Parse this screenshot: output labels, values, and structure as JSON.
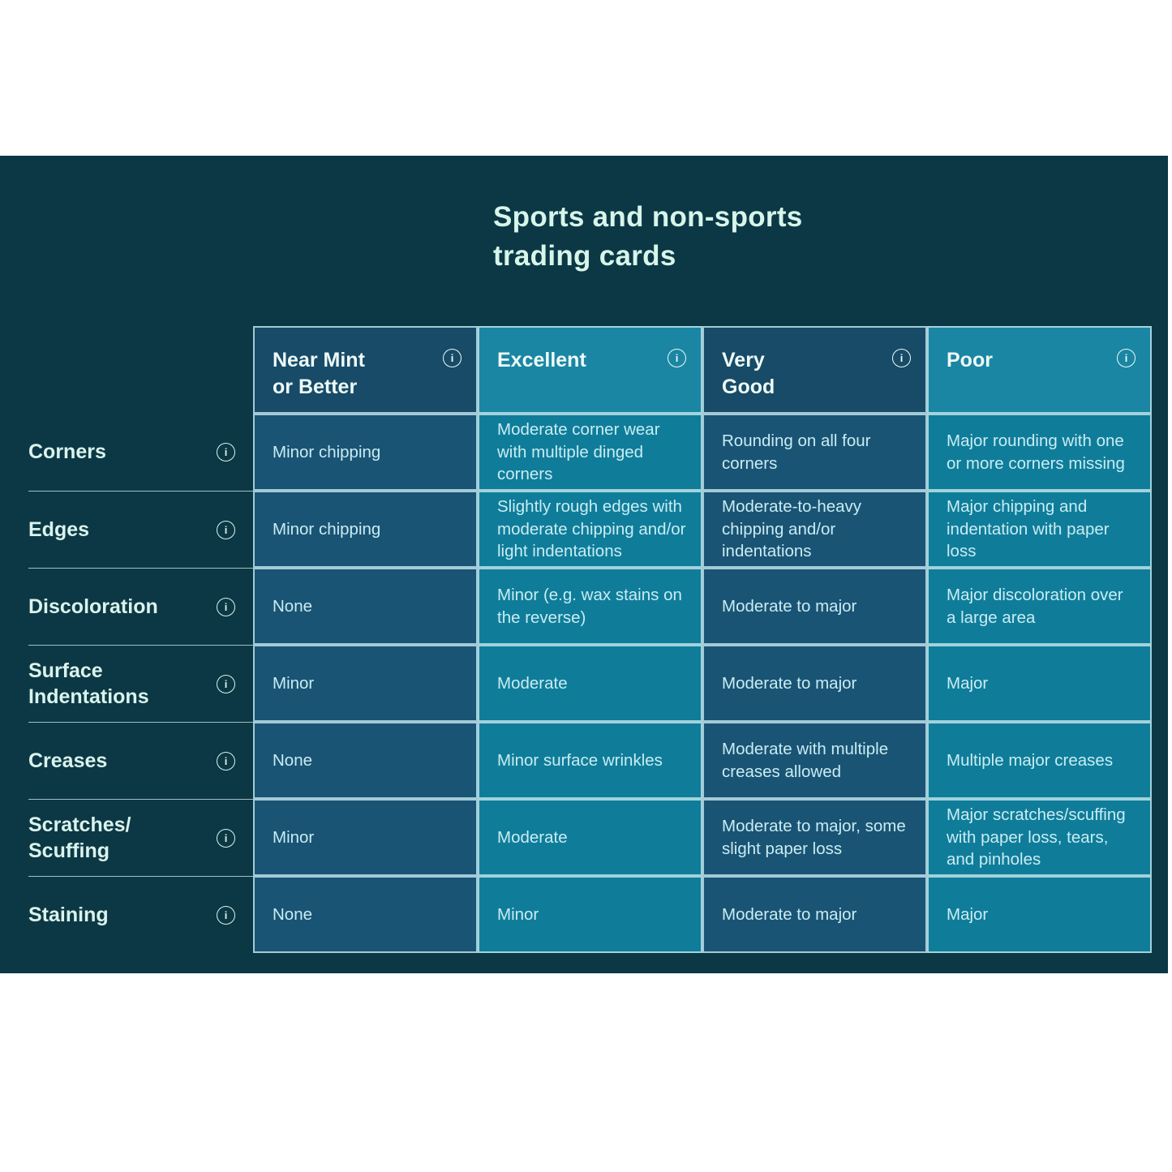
{
  "title": "Sports and non-sports\ntrading cards",
  "icons": {
    "info_glyph": "i"
  },
  "colors": {
    "panel_bg": "#0c3845",
    "column_dark_header": "#174b68",
    "column_dark_cell": "#1a5475",
    "column_light_header": "#1a86a4",
    "column_light_cell": "#0f7d9a",
    "cell_border": "#bce0e7",
    "title_text": "#d7f5ea",
    "cell_text": "#c9ecf2",
    "label_text": "#daf3ec"
  },
  "table": {
    "columns": [
      {
        "label": "Near Mint\nor Better",
        "tone": "dark"
      },
      {
        "label": "Excellent",
        "tone": "light"
      },
      {
        "label": "Very\nGood",
        "tone": "dark"
      },
      {
        "label": "Poor",
        "tone": "light"
      }
    ],
    "rows": [
      {
        "label": "Corners",
        "cells": [
          "Minor chipping",
          "Moderate corner wear with multiple dinged corners",
          "Rounding on all four corners",
          "Major rounding with one or more corners missing"
        ]
      },
      {
        "label": "Edges",
        "cells": [
          "Minor chipping",
          "Slightly rough edges with moderate chipping and/or light indentations",
          "Moderate-to-heavy chipping and/or indentations",
          "Major chipping and indentation with paper loss"
        ]
      },
      {
        "label": "Discoloration",
        "cells": [
          "None",
          "Minor (e.g. wax stains on the reverse)",
          "Moderate to major",
          "Major discoloration over a large area"
        ]
      },
      {
        "label": "Surface\nIndentations",
        "cells": [
          "Minor",
          "Moderate",
          "Moderate to major",
          "Major"
        ]
      },
      {
        "label": "Creases",
        "cells": [
          "None",
          "Minor surface wrinkles",
          "Moderate with multiple creases allowed",
          "Multiple major creases"
        ]
      },
      {
        "label": "Scratches/\nScuffing",
        "cells": [
          "Minor",
          "Moderate",
          "Moderate to major, some slight paper loss",
          "Major scratches/scuffing with paper loss, tears, and pinholes"
        ]
      },
      {
        "label": "Staining",
        "cells": [
          "None",
          "Minor",
          "Moderate to major",
          "Major"
        ]
      }
    ]
  }
}
